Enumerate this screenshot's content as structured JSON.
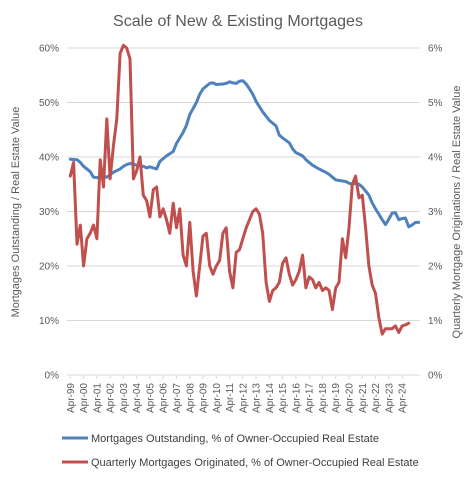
{
  "chart_data": {
    "type": "line",
    "title": "Scale of New & Existing Mortgages",
    "ylabel_left": "Mortgages Outstanding / Real Estate Value",
    "ylabel_right": "Quarterly Mortgage Originations / Real Estate Value",
    "ylim_left": [
      0,
      60
    ],
    "ylim_right": [
      0,
      6
    ],
    "yticks_left": [
      "0%",
      "10%",
      "20%",
      "30%",
      "40%",
      "50%",
      "60%"
    ],
    "yticks_right": [
      "0%",
      "1%",
      "2%",
      "3%",
      "4%",
      "5%",
      "6%"
    ],
    "xticks": [
      "Apr-99",
      "Apr-00",
      "Apr-01",
      "Apr-02",
      "Apr-03",
      "Apr-04",
      "Apr-05",
      "Apr-06",
      "Apr-07",
      "Apr-08",
      "Apr-09",
      "Apr-10",
      "Apr-11",
      "Apr-12",
      "Apr-13",
      "Apr-14",
      "Apr-15",
      "Apr-16",
      "Apr-17",
      "Apr-18",
      "Apr-19",
      "Apr-20",
      "Apr-21",
      "Apr-22",
      "Apr-23",
      "Apr-24"
    ],
    "grid": true,
    "legend_position": "bottom",
    "series": [
      {
        "name": "Mortgages Outstanding, % of Owner-Occupied Real Estate",
        "axis": "left",
        "color": "#4f81bd",
        "values": [
          [
            1999.25,
            39.6
          ],
          [
            1999.75,
            39.5
          ],
          [
            2000.0,
            39.0
          ],
          [
            2000.25,
            38.3
          ],
          [
            2000.75,
            37.3
          ],
          [
            2001.0,
            36.3
          ],
          [
            2001.25,
            36.2
          ],
          [
            2001.75,
            36.5
          ],
          [
            2002.0,
            36.3
          ],
          [
            2002.5,
            37.2
          ],
          [
            2003.0,
            37.8
          ],
          [
            2003.25,
            38.3
          ],
          [
            2003.5,
            38.6
          ],
          [
            2003.75,
            38.8
          ],
          [
            2004.25,
            38.5
          ],
          [
            2004.75,
            38.3
          ],
          [
            2005.0,
            38.0
          ],
          [
            2005.25,
            38.2
          ],
          [
            2005.75,
            37.8
          ],
          [
            2006.0,
            39.2
          ],
          [
            2006.5,
            40.2
          ],
          [
            2007.0,
            41.0
          ],
          [
            2007.25,
            42.5
          ],
          [
            2007.75,
            44.5
          ],
          [
            2008.0,
            45.8
          ],
          [
            2008.25,
            47.8
          ],
          [
            2008.75,
            50.0
          ],
          [
            2009.0,
            51.5
          ],
          [
            2009.25,
            52.5
          ],
          [
            2009.5,
            53.0
          ],
          [
            2009.75,
            53.5
          ],
          [
            2010.0,
            53.6
          ],
          [
            2010.25,
            53.3
          ],
          [
            2010.75,
            53.4
          ],
          [
            2011.0,
            53.5
          ],
          [
            2011.25,
            53.8
          ],
          [
            2011.5,
            53.6
          ],
          [
            2011.75,
            53.5
          ],
          [
            2012.0,
            53.9
          ],
          [
            2012.25,
            54.0
          ],
          [
            2012.5,
            53.4
          ],
          [
            2012.75,
            52.5
          ],
          [
            2013.0,
            51.5
          ],
          [
            2013.25,
            50.2
          ],
          [
            2013.75,
            48.3
          ],
          [
            2014.25,
            46.7
          ],
          [
            2014.75,
            45.7
          ],
          [
            2015.0,
            44.0
          ],
          [
            2015.25,
            43.5
          ],
          [
            2015.75,
            42.6
          ],
          [
            2016.0,
            41.5
          ],
          [
            2016.25,
            40.8
          ],
          [
            2016.75,
            40.2
          ],
          [
            2017.0,
            39.5
          ],
          [
            2017.5,
            38.5
          ],
          [
            2018.0,
            37.8
          ],
          [
            2018.5,
            37.2
          ],
          [
            2018.75,
            36.8
          ],
          [
            2019.0,
            36.3
          ],
          [
            2019.25,
            35.8
          ],
          [
            2019.75,
            35.6
          ],
          [
            2020.0,
            35.5
          ],
          [
            2020.25,
            35.2
          ],
          [
            2020.5,
            35.0
          ],
          [
            2020.75,
            35.2
          ],
          [
            2021.0,
            35.0
          ],
          [
            2021.25,
            34.5
          ],
          [
            2021.75,
            33.0
          ],
          [
            2022.0,
            31.6
          ],
          [
            2022.25,
            30.5
          ],
          [
            2022.5,
            29.5
          ],
          [
            2022.75,
            28.5
          ],
          [
            2023.0,
            27.6
          ],
          [
            2023.25,
            28.6
          ],
          [
            2023.5,
            29.7
          ],
          [
            2023.75,
            29.8
          ],
          [
            2024.0,
            28.5
          ],
          [
            2024.25,
            28.7
          ],
          [
            2024.5,
            28.8
          ],
          [
            2024.75,
            27.2
          ],
          [
            2025.0,
            27.5
          ],
          [
            2025.25,
            28.0
          ],
          [
            2025.5,
            28.0
          ]
        ]
      },
      {
        "name": "Quarterly Mortgages Originated, % of Owner-Occupied Real Estate",
        "axis": "right",
        "color": "#c0504d",
        "values": [
          [
            1999.25,
            3.65
          ],
          [
            1999.5,
            3.9
          ],
          [
            1999.75,
            2.4
          ],
          [
            2000.0,
            2.75
          ],
          [
            2000.25,
            2.0
          ],
          [
            2000.5,
            2.5
          ],
          [
            2000.75,
            2.6
          ],
          [
            2001.0,
            2.75
          ],
          [
            2001.25,
            2.5
          ],
          [
            2001.5,
            3.95
          ],
          [
            2001.75,
            3.45
          ],
          [
            2002.0,
            4.7
          ],
          [
            2002.25,
            3.6
          ],
          [
            2002.5,
            4.2
          ],
          [
            2002.75,
            4.7
          ],
          [
            2003.0,
            5.9
          ],
          [
            2003.25,
            6.05
          ],
          [
            2003.5,
            6.0
          ],
          [
            2003.75,
            5.8
          ],
          [
            2004.0,
            3.6
          ],
          [
            2004.25,
            3.75
          ],
          [
            2004.5,
            4.0
          ],
          [
            2004.75,
            3.3
          ],
          [
            2005.0,
            3.2
          ],
          [
            2005.25,
            2.9
          ],
          [
            2005.5,
            3.4
          ],
          [
            2005.75,
            3.45
          ],
          [
            2006.0,
            2.9
          ],
          [
            2006.25,
            3.05
          ],
          [
            2006.5,
            2.85
          ],
          [
            2006.75,
            2.6
          ],
          [
            2007.0,
            3.15
          ],
          [
            2007.25,
            2.7
          ],
          [
            2007.5,
            3.05
          ],
          [
            2007.75,
            2.2
          ],
          [
            2008.0,
            2.0
          ],
          [
            2008.25,
            2.8
          ],
          [
            2008.5,
            1.9
          ],
          [
            2008.75,
            1.45
          ],
          [
            2009.0,
            2.0
          ],
          [
            2009.25,
            2.55
          ],
          [
            2009.5,
            2.6
          ],
          [
            2009.75,
            2.0
          ],
          [
            2010.0,
            1.85
          ],
          [
            2010.25,
            2.0
          ],
          [
            2010.5,
            2.1
          ],
          [
            2010.75,
            2.6
          ],
          [
            2011.0,
            2.7
          ],
          [
            2011.25,
            1.9
          ],
          [
            2011.5,
            1.6
          ],
          [
            2011.75,
            2.25
          ],
          [
            2012.0,
            2.3
          ],
          [
            2012.25,
            2.5
          ],
          [
            2012.5,
            2.7
          ],
          [
            2012.75,
            2.85
          ],
          [
            2013.0,
            3.0
          ],
          [
            2013.25,
            3.05
          ],
          [
            2013.5,
            2.95
          ],
          [
            2013.75,
            2.6
          ],
          [
            2014.0,
            1.7
          ],
          [
            2014.25,
            1.35
          ],
          [
            2014.5,
            1.55
          ],
          [
            2014.75,
            1.6
          ],
          [
            2015.0,
            1.7
          ],
          [
            2015.25,
            2.05
          ],
          [
            2015.5,
            2.15
          ],
          [
            2015.75,
            1.85
          ],
          [
            2016.0,
            1.65
          ],
          [
            2016.25,
            1.75
          ],
          [
            2016.5,
            1.9
          ],
          [
            2016.75,
            2.2
          ],
          [
            2017.0,
            1.6
          ],
          [
            2017.25,
            1.8
          ],
          [
            2017.5,
            1.75
          ],
          [
            2017.75,
            1.6
          ],
          [
            2018.0,
            1.7
          ],
          [
            2018.25,
            1.55
          ],
          [
            2018.5,
            1.6
          ],
          [
            2018.75,
            1.55
          ],
          [
            2019.0,
            1.2
          ],
          [
            2019.25,
            1.6
          ],
          [
            2019.5,
            1.7
          ],
          [
            2019.75,
            2.5
          ],
          [
            2020.0,
            2.15
          ],
          [
            2020.25,
            2.7
          ],
          [
            2020.5,
            3.5
          ],
          [
            2020.75,
            3.65
          ],
          [
            2021.0,
            3.25
          ],
          [
            2021.25,
            3.3
          ],
          [
            2021.5,
            2.7
          ],
          [
            2021.75,
            2.0
          ],
          [
            2022.0,
            1.65
          ],
          [
            2022.25,
            1.5
          ],
          [
            2022.5,
            1.05
          ],
          [
            2022.75,
            0.75
          ],
          [
            2023.0,
            0.85
          ],
          [
            2023.25,
            0.85
          ],
          [
            2023.5,
            0.85
          ],
          [
            2023.75,
            0.9
          ],
          [
            2024.0,
            0.78
          ],
          [
            2024.25,
            0.9
          ],
          [
            2024.5,
            0.92
          ],
          [
            2024.75,
            0.95
          ]
        ]
      }
    ]
  }
}
